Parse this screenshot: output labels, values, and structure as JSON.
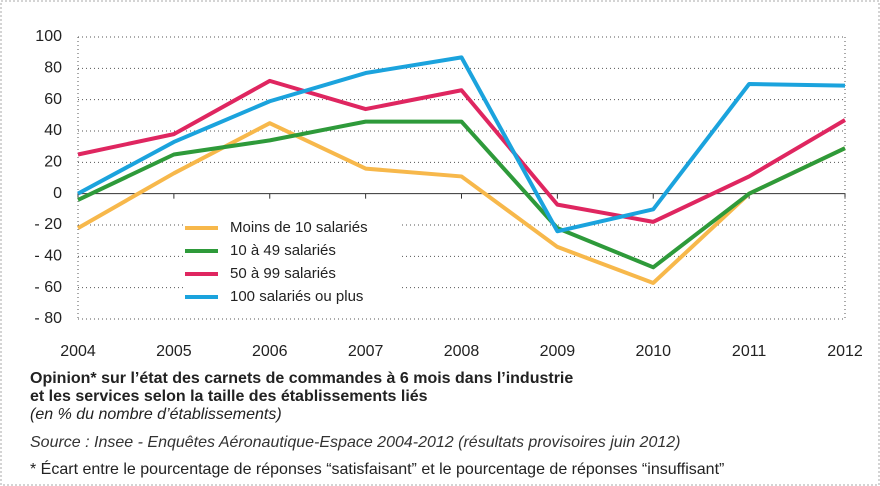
{
  "chart_data": {
    "type": "line",
    "title": [
      "Opinion* sur l’état des carnets de commandes à 6 mois dans l’industrie",
      "et les services selon la taille des établissements liés"
    ],
    "subtitle": "(en % du nombre d’établissements)",
    "source": "Source : Insee - Enquêtes Aéronautique-Espace 2004-2012 (résultats provisoires juin 2012)",
    "note": "* Écart entre le pourcentage de réponses “satisfaisant” et le pourcentage de réponses “insuffisant”",
    "x": [
      2004,
      2005,
      2006,
      2007,
      2008,
      2009,
      2010,
      2011,
      2012
    ],
    "xlim": [
      2004,
      2012
    ],
    "xticks": [
      2004,
      2005,
      2006,
      2007,
      2008,
      2009,
      2010,
      2011,
      2012
    ],
    "ylim": [
      -80,
      100
    ],
    "yticks": [
      100,
      80,
      60,
      40,
      20,
      0,
      {
        "value": -20,
        "label": "- 20"
      },
      {
        "value": -40,
        "label": "- 40"
      },
      {
        "value": -60,
        "label": "- 60"
      },
      {
        "value": -80,
        "label": "- 80"
      }
    ],
    "grid": true,
    "legend": "lower left",
    "series": [
      {
        "name": "Moins de 10 salariés",
        "color": "#f7b84b",
        "values": [
          -22,
          13,
          45,
          16,
          11,
          -34,
          -57,
          0,
          29
        ]
      },
      {
        "name": "10 à 49 salariés",
        "color": "#2e9a3a",
        "values": [
          -4,
          25,
          34,
          46,
          46,
          -22,
          -47,
          0,
          29
        ]
      },
      {
        "name": "50 à 99 salariés",
        "color": "#df2660",
        "values": [
          25,
          38,
          72,
          54,
          66,
          -7,
          -18,
          11,
          47
        ]
      },
      {
        "name": "100 salariés ou plus",
        "color": "#1ba3dd",
        "values": [
          0,
          33,
          59,
          77,
          87,
          -24,
          -10,
          70,
          69
        ]
      }
    ]
  }
}
